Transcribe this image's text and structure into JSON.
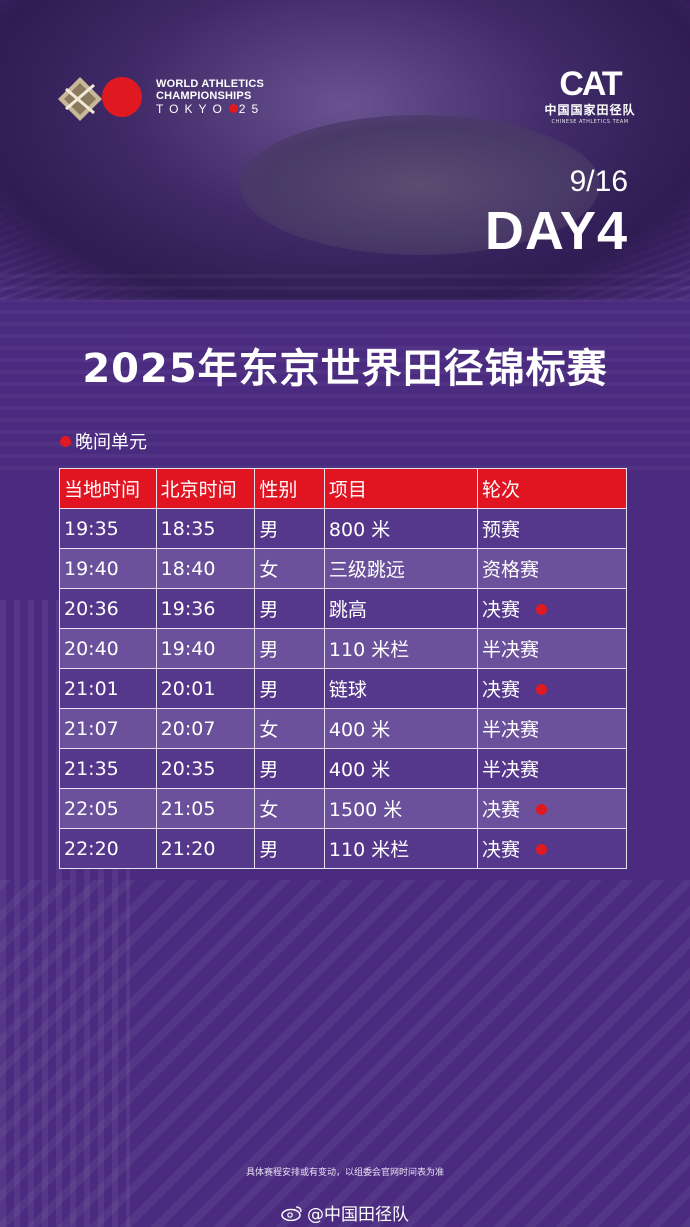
{
  "event_logo": {
    "line1": "WORLD ATHLETICS",
    "line2": "CHAMPIONSHIPS",
    "city_prefix": "TOKYO",
    "city_suffix": "25"
  },
  "team_logo": {
    "mark": "CAT",
    "name_cn": "中国国家田径队",
    "name_en": "CHINESE ATHLETICS TEAM"
  },
  "date": "9/16",
  "day": "DAY4",
  "title": "2025年东京世界田径锦标赛",
  "session": "晚间单元",
  "table": {
    "headers": [
      "当地时间",
      "北京时间",
      "性别",
      "项目",
      "轮次"
    ],
    "rows": [
      {
        "local": "19:35",
        "beijing": "18:35",
        "gender": "男",
        "event": "800 米",
        "round": "预赛",
        "final": false
      },
      {
        "local": "19:40",
        "beijing": "18:40",
        "gender": "女",
        "event": "三级跳远",
        "round": "资格赛",
        "final": false
      },
      {
        "local": "20:36",
        "beijing": "19:36",
        "gender": "男",
        "event": "跳高",
        "round": "决赛",
        "final": true
      },
      {
        "local": "20:40",
        "beijing": "19:40",
        "gender": "男",
        "event": "110 米栏",
        "round": "半决赛",
        "final": false
      },
      {
        "local": "21:01",
        "beijing": "20:01",
        "gender": "男",
        "event": "链球",
        "round": "决赛",
        "final": true
      },
      {
        "local": "21:07",
        "beijing": "20:07",
        "gender": "女",
        "event": "400 米",
        "round": "半决赛",
        "final": false
      },
      {
        "local": "21:35",
        "beijing": "20:35",
        "gender": "男",
        "event": "400 米",
        "round": "半决赛",
        "final": false
      },
      {
        "local": "22:05",
        "beijing": "21:05",
        "gender": "女",
        "event": "1500 米",
        "round": "决赛",
        "final": true
      },
      {
        "local": "22:20",
        "beijing": "21:20",
        "gender": "男",
        "event": "110 米栏",
        "round": "决赛",
        "final": true
      }
    ]
  },
  "footnote": "具体赛程安排或有变动，以组委会官网时间表为准",
  "watermark": "@中国田径队",
  "colors": {
    "background": "#4b2b80",
    "header_red": "#e11422",
    "accent_red": "#e0181f",
    "gold": "#d3a34a"
  }
}
